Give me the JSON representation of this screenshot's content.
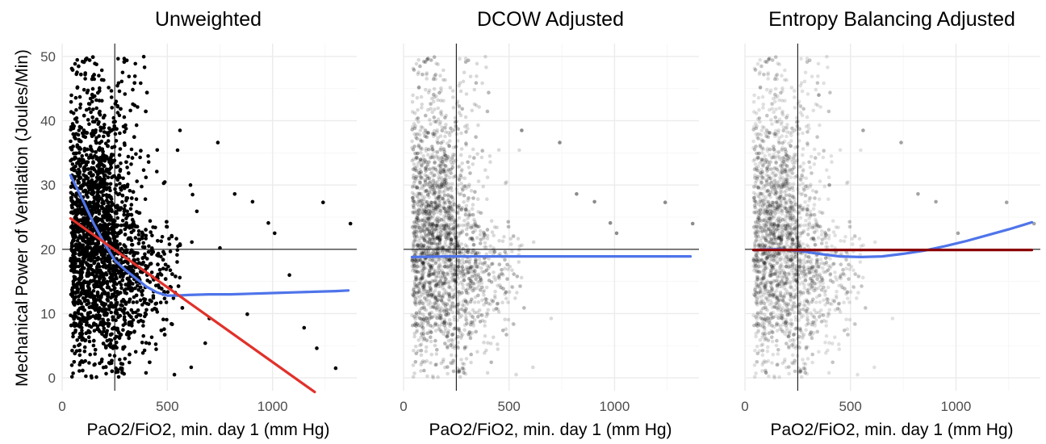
{
  "ylabel": "Mechanical Power of Ventilation (Joules/Min)",
  "xlabel": "PaO2/FiO2, min. day 1 (mm Hg)",
  "colors": {
    "points": "#000000",
    "blue_curve": "#4f74ea",
    "red_line": "#e1312b",
    "dark_red_line": "#8b0000",
    "grid": "#ebebeb",
    "reference_lines": "#000000"
  },
  "chart_data": [
    {
      "type": "scatter",
      "title": "Unweighted",
      "xlabel": "PaO2/FiO2, min. day 1 (mm Hg)",
      "ylabel": "Mechanical Power of Ventilation (Joules/Min)",
      "xlim": [
        0,
        1400
      ],
      "ylim": [
        -2,
        52
      ],
      "x_ticks": [
        0,
        500,
        1000
      ],
      "y_ticks": [
        0,
        10,
        20,
        30,
        40,
        50
      ],
      "grid": true,
      "point_opacity": 1.0,
      "reference_lines": {
        "vline_x": 250,
        "hline_y": 20
      },
      "series": [
        {
          "label": "loess",
          "color": "#4f74ea",
          "x": [
            40,
            100,
            150,
            200,
            250,
            300,
            350,
            400,
            450,
            500,
            550,
            600,
            700,
            800,
            900,
            1000,
            1100,
            1200,
            1300,
            1360
          ],
          "y": [
            31.5,
            27.5,
            24.0,
            21.0,
            18.3,
            16.8,
            15.5,
            14.2,
            13.3,
            12.8,
            12.8,
            12.9,
            13.0,
            13.0,
            13.1,
            13.2,
            13.3,
            13.4,
            13.5,
            13.6
          ]
        },
        {
          "label": "linear",
          "color": "#e1312b",
          "x": [
            40,
            1200
          ],
          "y": [
            24.8,
            -2.2
          ]
        }
      ],
      "outliers": {
        "x": [
          740,
          820,
          905,
          980,
          1010,
          1240,
          1370,
          560,
          610,
          750,
          1300,
          1210,
          1080,
          1150,
          640,
          680,
          880,
          560,
          620,
          450
        ],
        "y": [
          36.6,
          28.6,
          27.4,
          24.1,
          22.5,
          27.3,
          24.0,
          38.5,
          30.0,
          20.2,
          1.5,
          4.6,
          16.0,
          7.8,
          25.9,
          5.4,
          9.9,
          20.8,
          28.5,
          32.1
        ]
      }
    },
    {
      "type": "scatter",
      "title": "DCOW Adjusted",
      "xlabel": "PaO2/FiO2, min. day 1 (mm Hg)",
      "xlim": [
        0,
        1400
      ],
      "ylim": [
        -2,
        52
      ],
      "x_ticks": [
        0,
        500,
        1000
      ],
      "grid": true,
      "point_opacity": 0.15,
      "reference_lines": {
        "vline_x": 250,
        "hline_y": 20
      },
      "series": [
        {
          "label": "loess",
          "color": "#4f74ea",
          "x": [
            40,
            200,
            400,
            600,
            800,
            1000,
            1200,
            1360
          ],
          "y": [
            18.8,
            18.9,
            18.9,
            18.9,
            18.9,
            18.9,
            18.9,
            18.9
          ]
        }
      ],
      "outliers": {
        "x": [
          740,
          905,
          980,
          1010,
          1240,
          1370,
          560,
          820
        ],
        "y": [
          36.6,
          27.4,
          24.1,
          22.5,
          27.3,
          24.0,
          38.5,
          28.6
        ]
      }
    },
    {
      "type": "scatter",
      "title": "Entropy Balancing Adjusted",
      "xlabel": "PaO2/FiO2, min. day 1 (mm Hg)",
      "xlim": [
        0,
        1400
      ],
      "ylim": [
        -2,
        52
      ],
      "x_ticks": [
        0,
        500,
        1000
      ],
      "grid": true,
      "point_opacity": 0.12,
      "reference_lines": {
        "vline_x": 250,
        "hline_y": 20
      },
      "series": [
        {
          "label": "loess",
          "color": "#4f74ea",
          "x": [
            40,
            150,
            250,
            350,
            450,
            550,
            650,
            750,
            850,
            950,
            1050,
            1150,
            1250,
            1360
          ],
          "y": [
            19.9,
            20.0,
            19.8,
            19.3,
            18.9,
            18.8,
            18.9,
            19.3,
            19.8,
            20.5,
            21.3,
            22.2,
            23.1,
            24.2
          ]
        },
        {
          "label": "linear",
          "color": "#8b0000",
          "x": [
            40,
            1360
          ],
          "y": [
            19.9,
            19.9
          ]
        }
      ],
      "outliers": {
        "x": [
          740,
          905,
          1010,
          1240,
          1370,
          560,
          820,
          100,
          350,
          400
        ],
        "y": [
          36.6,
          27.4,
          22.5,
          27.3,
          24.0,
          38.5,
          28.6,
          0.8,
          44.0,
          30.0
        ]
      }
    }
  ]
}
